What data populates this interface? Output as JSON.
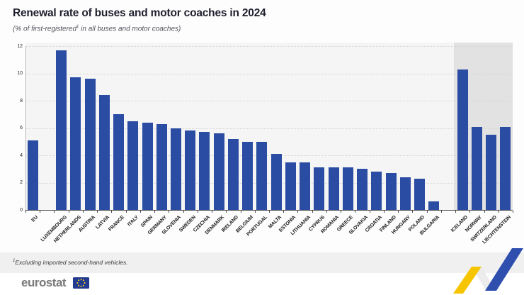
{
  "title": "Renewal rate of buses and motor coaches in 2024",
  "subtitle": {
    "pre": "(% of first-registered",
    "sup": "1",
    "post": " in all buses and motor coaches)"
  },
  "footnote": {
    "sup": "1",
    "text": "Excluding imported second-hand vehicles."
  },
  "logo": {
    "text": "eurostat"
  },
  "colors": {
    "bar_blue": "#2a4ca3",
    "plot_background": "#f5f5f5",
    "efta_shaded_background": "#e2e2e2",
    "footnote_band_background": "#f0f0f0",
    "flag_blue": "#223a8f",
    "flag_star_yellow": "#ffd617",
    "zigzag_yellow": "#f6c500",
    "zigzag_blue": "#2e4fae"
  },
  "chart_data": {
    "type": "bar",
    "title": "Renewal rate of buses and motor coaches in 2024",
    "subtitle": "(% of first-registered1 in all buses and motor coaches)",
    "xlabel": "",
    "ylabel": "",
    "ylim": [
      0,
      12
    ],
    "yticks": [
      0,
      2,
      4,
      6,
      8,
      10,
      12
    ],
    "grid": true,
    "legend": null,
    "bar_color": "#2a4ca3",
    "categories": [
      "EU",
      "LUXEMBOURG",
      "NETHERLANDS",
      "AUSTRIA",
      "LATVIA",
      "FRANCE",
      "ITALY",
      "SPAIN",
      "GERMANY",
      "SLOVENIA",
      "SWEDEN",
      "CZECHIA",
      "DENMARK",
      "IRELAND",
      "BELGIUM",
      "PORTUGAL",
      "MALTA",
      "ESTONIA",
      "LITHUANIA",
      "CYPRUS",
      "ROMANIA",
      "GREECE",
      "SLOVAKIA",
      "CROATIA",
      "FINLAND",
      "HUNGARY",
      "POLAND",
      "BULGARIA",
      "ICELAND",
      "NORWAY",
      "SWITZERLAND",
      "LIECHTENSTEIN"
    ],
    "values": [
      5.1,
      11.7,
      9.7,
      9.6,
      8.4,
      7.0,
      6.5,
      6.4,
      6.3,
      6.0,
      5.8,
      5.7,
      5.6,
      5.2,
      5.0,
      5.0,
      4.1,
      3.5,
      3.5,
      3.1,
      3.1,
      3.1,
      3.0,
      2.8,
      2.7,
      2.4,
      2.3,
      0.6,
      10.3,
      6.1,
      5.5,
      6.1
    ],
    "separators_after": [
      "EU",
      "BULGARIA"
    ],
    "shaded_categories": [
      "ICELAND",
      "NORWAY",
      "SWITZERLAND",
      "LIECHTENSTEIN"
    ]
  }
}
